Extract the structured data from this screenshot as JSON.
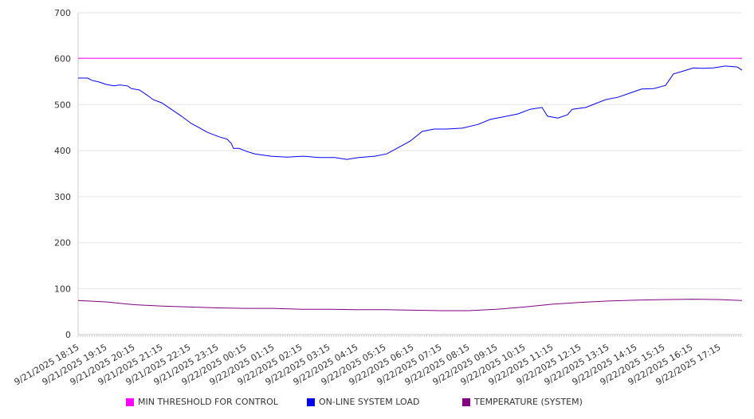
{
  "chart_data": {
    "type": "line",
    "title": "",
    "xlabel": "",
    "ylabel": "",
    "ylim": [
      0,
      700
    ],
    "yticks": [
      0,
      100,
      200,
      300,
      400,
      500,
      600,
      700
    ],
    "x_units": "hours from 9/21/2025 18:15",
    "xlim": [
      0,
      23.8
    ],
    "xtick_labels": [
      "9/21/2025 18:15",
      "9/21/2025 19:15",
      "9/21/2025 20:15",
      "9/21/2025 21:15",
      "9/21/2025 22:15",
      "9/21/2025 23:15",
      "9/22/2025 00:15",
      "9/22/2025 01:15",
      "9/22/2025 02:15",
      "9/22/2025 03:15",
      "9/22/2025 04:15",
      "9/22/2025 05:15",
      "9/22/2025 06:15",
      "9/22/2025 07:15",
      "9/22/2025 08:15",
      "9/22/2025 09:15",
      "9/22/2025 10:15",
      "9/22/2025 11:15",
      "9/22/2025 12:15",
      "9/22/2025 13:15",
      "9/22/2025 14:15",
      "9/22/2025 15:15",
      "9/22/2025 16:15",
      "9/22/2025 17:15"
    ],
    "grid": true,
    "legend_position": "bottom",
    "series": [
      {
        "name": "MIN THRESHOLD FOR CONTROL",
        "color": "#ff00ff",
        "points": [
          [
            0,
            601
          ],
          [
            23.8,
            601
          ]
        ]
      },
      {
        "name": "ON-LINE SYSTEM LOAD",
        "color": "#0000ff",
        "points": [
          [
            0,
            558
          ],
          [
            0.34,
            558
          ],
          [
            0.49,
            553
          ],
          [
            0.77,
            549
          ],
          [
            1,
            544
          ],
          [
            1.29,
            541
          ],
          [
            1.49,
            543
          ],
          [
            1.77,
            541
          ],
          [
            1.91,
            535
          ],
          [
            2.2,
            532
          ],
          [
            2.49,
            520
          ],
          [
            2.69,
            511
          ],
          [
            3,
            504
          ],
          [
            3.34,
            490
          ],
          [
            3.71,
            475
          ],
          [
            4.06,
            459
          ],
          [
            4.34,
            450
          ],
          [
            4.63,
            440
          ],
          [
            5.06,
            430
          ],
          [
            5.34,
            425
          ],
          [
            5.49,
            416
          ],
          [
            5.57,
            405
          ],
          [
            5.77,
            405
          ],
          [
            6.06,
            398
          ],
          [
            6.34,
            393
          ],
          [
            6.91,
            388
          ],
          [
            7.49,
            386
          ],
          [
            8.06,
            388
          ],
          [
            8.63,
            385
          ],
          [
            9.2,
            385
          ],
          [
            9.63,
            381
          ],
          [
            10.06,
            385
          ],
          [
            10.63,
            388
          ],
          [
            11.06,
            393
          ],
          [
            11.49,
            407
          ],
          [
            11.91,
            421
          ],
          [
            12.34,
            442
          ],
          [
            12.77,
            447
          ],
          [
            13.2,
            447
          ],
          [
            13.77,
            449
          ],
          [
            14.34,
            457
          ],
          [
            14.77,
            468
          ],
          [
            15.2,
            473
          ],
          [
            15.77,
            480
          ],
          [
            16.2,
            490
          ],
          [
            16.63,
            494
          ],
          [
            16.83,
            475
          ],
          [
            17.2,
            471
          ],
          [
            17.54,
            478
          ],
          [
            17.71,
            490
          ],
          [
            18.2,
            494
          ],
          [
            18.49,
            501
          ],
          [
            18.91,
            511
          ],
          [
            19.34,
            516
          ],
          [
            19.77,
            525
          ],
          [
            20.2,
            534
          ],
          [
            20.63,
            535
          ],
          [
            21.06,
            542
          ],
          [
            21.34,
            567
          ],
          [
            21.63,
            572
          ],
          [
            22.06,
            580
          ],
          [
            22.34,
            579
          ],
          [
            22.77,
            580
          ],
          [
            23.2,
            584
          ],
          [
            23.63,
            582
          ],
          [
            23.8,
            575
          ]
        ]
      },
      {
        "name": "TEMPERATURE (SYSTEM)",
        "color": "#800080",
        "points": [
          [
            0,
            74
          ],
          [
            1,
            71
          ],
          [
            2,
            65
          ],
          [
            3,
            62
          ],
          [
            4,
            60
          ],
          [
            5,
            58
          ],
          [
            6,
            57
          ],
          [
            7,
            57
          ],
          [
            8,
            55
          ],
          [
            9,
            55
          ],
          [
            10,
            54
          ],
          [
            11,
            54
          ],
          [
            12,
            53
          ],
          [
            13,
            52
          ],
          [
            14,
            52
          ],
          [
            15,
            55
          ],
          [
            16,
            60
          ],
          [
            17,
            66
          ],
          [
            18,
            70
          ],
          [
            19,
            73
          ],
          [
            20,
            75
          ],
          [
            21,
            76
          ],
          [
            22,
            77
          ],
          [
            23,
            76
          ],
          [
            23.8,
            74
          ]
        ]
      }
    ]
  }
}
